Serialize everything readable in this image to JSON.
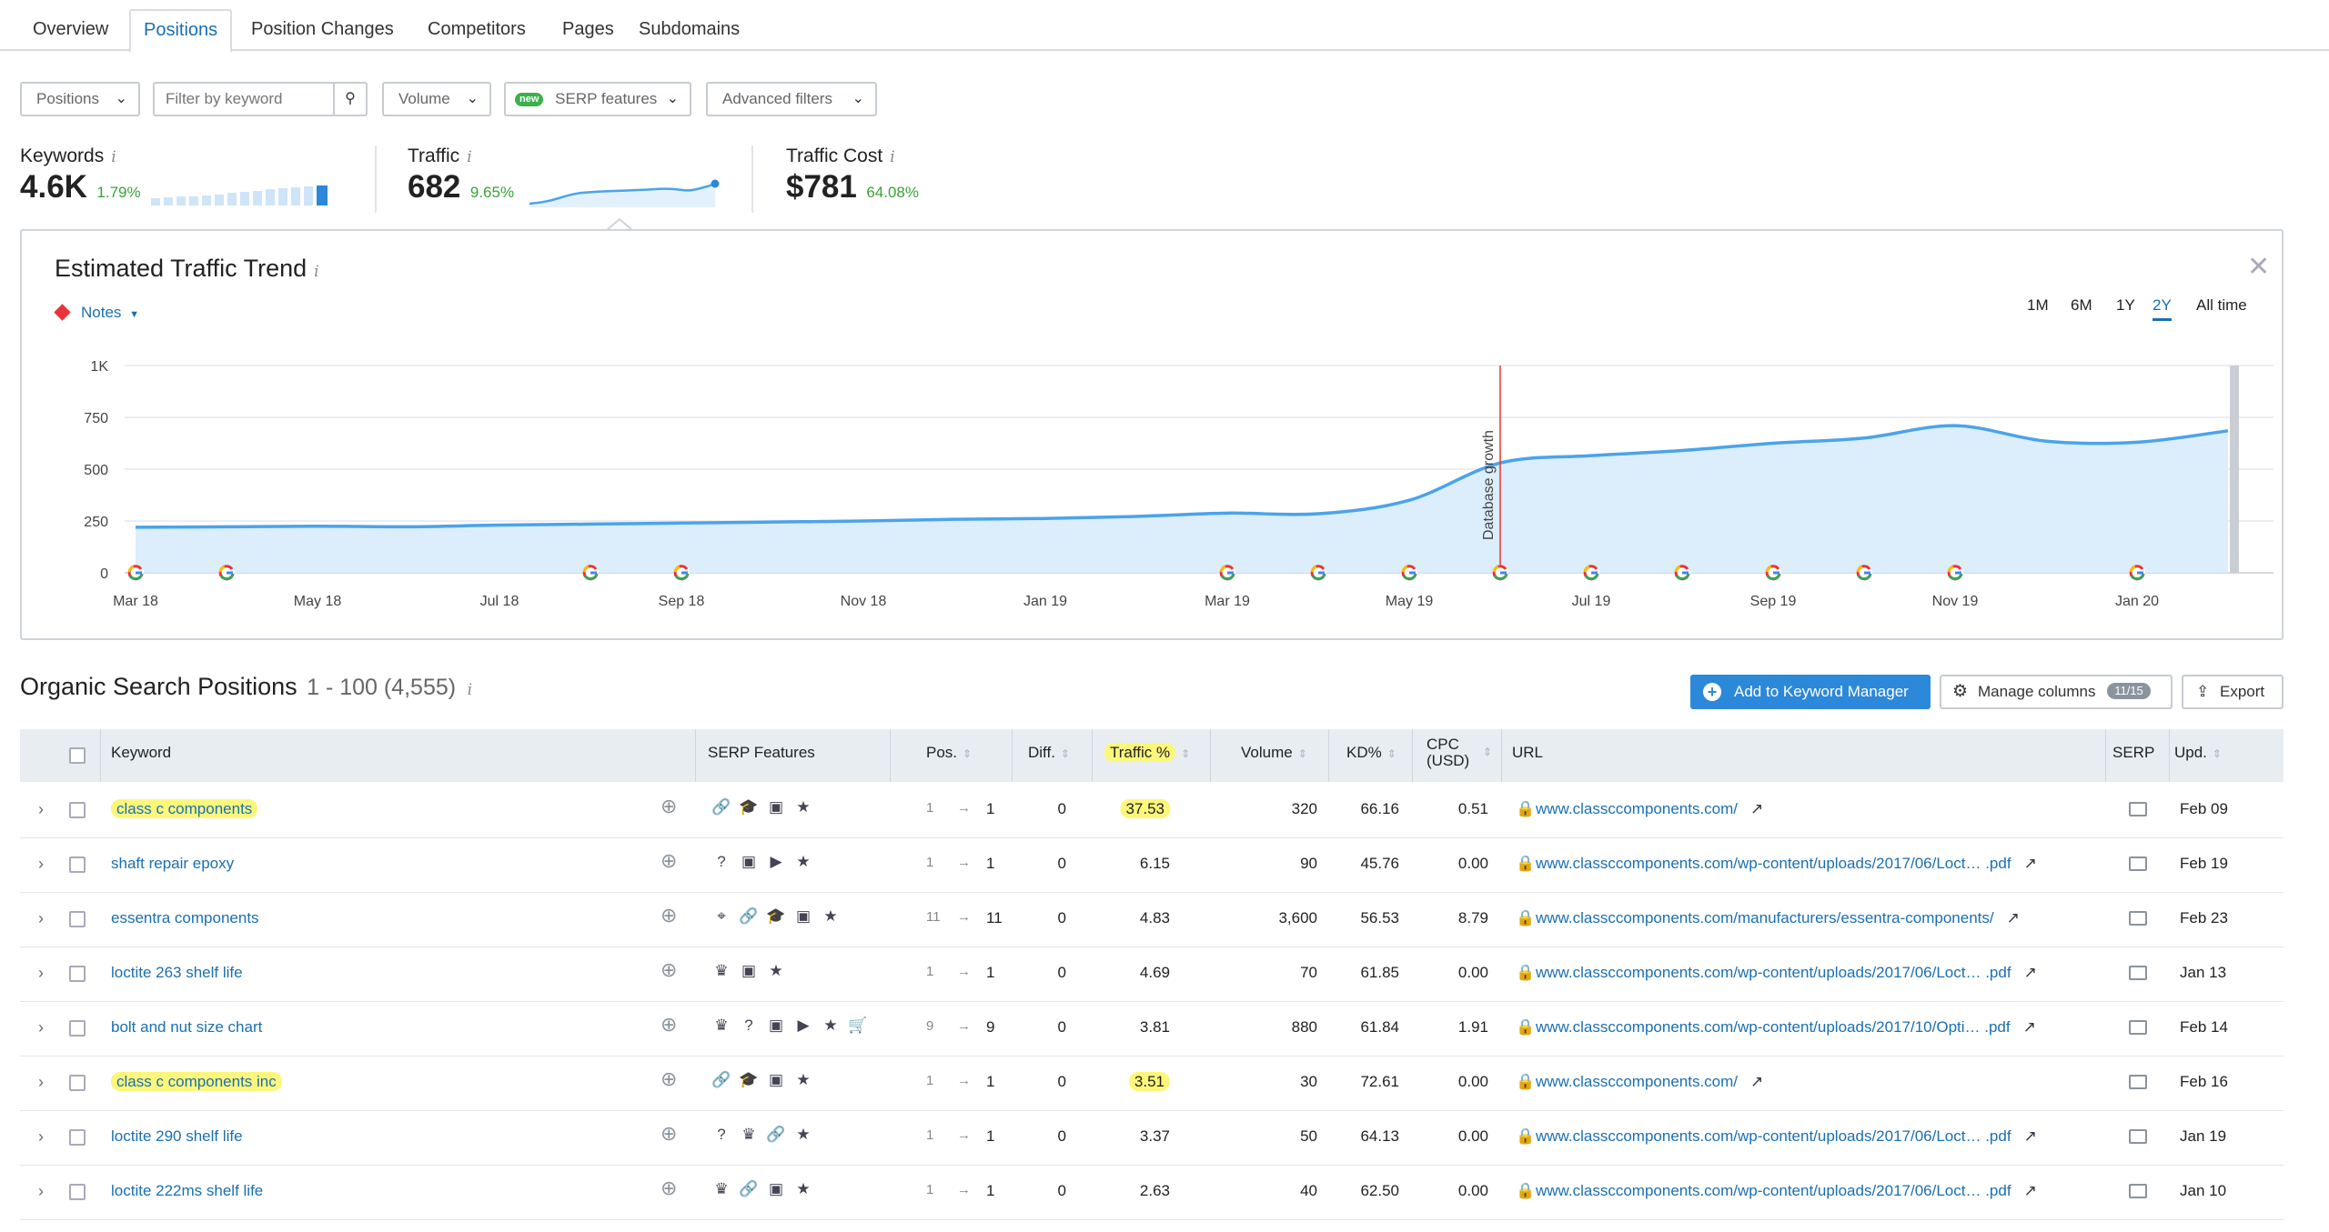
{
  "tabs": [
    "Overview",
    "Positions",
    "Position Changes",
    "Competitors",
    "Pages",
    "Subdomains"
  ],
  "filters": {
    "positions": "Positions",
    "keyword_placeholder": "Filter by keyword",
    "volume": "Volume",
    "serp_badge": "new",
    "serp": "SERP features",
    "advanced": "Advanced filters"
  },
  "metrics": {
    "keywords": {
      "label": "Keywords",
      "value": "4.6K",
      "pct": "1.79%"
    },
    "traffic": {
      "label": "Traffic",
      "value": "682",
      "pct": "9.65%"
    },
    "cost": {
      "label": "Traffic Cost",
      "value": "$781",
      "pct": "64.08%"
    }
  },
  "trend": {
    "title": "Estimated Traffic Trend",
    "notes": "Notes",
    "ranges": [
      "1M",
      "6M",
      "1Y",
      "2Y",
      "All time"
    ],
    "active_range": "2Y",
    "annotation": "Database growth"
  },
  "chart_data": {
    "type": "area",
    "x_labels": [
      "Mar 18",
      "May 18",
      "Jul 18",
      "Sep 18",
      "Nov 18",
      "Jan 19",
      "Mar 19",
      "May 19",
      "Jul 19",
      "Sep 19",
      "Nov 19",
      "Jan 20"
    ],
    "yticks": [
      "0",
      "250",
      "500",
      "750",
      "1K"
    ],
    "ylim": [
      0,
      1000
    ],
    "series": [
      {
        "x": [
          "Mar 18",
          "Apr 18",
          "May 18",
          "Jun 18",
          "Jul 18",
          "Aug 18",
          "Sep 18",
          "Oct 18",
          "Nov 18",
          "Dec 18",
          "Jan 19",
          "Feb 19",
          "Mar 19",
          "Apr 19",
          "May 19",
          "Jun 19",
          "Jul 19",
          "Aug 19",
          "Sep 19",
          "Oct 19",
          "Nov 19",
          "Dec 19",
          "Jan 20",
          "Feb 20"
        ],
        "y": [
          220,
          222,
          225,
          222,
          230,
          235,
          240,
          245,
          250,
          258,
          262,
          272,
          288,
          285,
          350,
          530,
          565,
          590,
          625,
          650,
          710,
          635,
          630,
          685
        ]
      }
    ],
    "google_markers": [
      "Mar 18",
      "Apr 18",
      "Aug 18",
      "Sep 18",
      "Mar 19",
      "Apr 19",
      "May 19",
      "Jun 19",
      "Jul 19",
      "Aug 19",
      "Sep 19",
      "Oct 19",
      "Nov 19",
      "Jan 20"
    ],
    "grid": true,
    "color": "#4aa3ec"
  },
  "positions": {
    "title": "Organic Search Positions",
    "range": "1 - 100 (4,555)",
    "add_btn": "Add to Keyword Manager",
    "manage_btn": "Manage columns",
    "manage_badge": "11/15",
    "export_btn": "Export"
  },
  "columns": [
    "Keyword",
    "SERP Features",
    "Pos.",
    "Diff.",
    "Traffic %",
    "Volume",
    "KD%",
    "CPC",
    "(USD)",
    "URL",
    "SERP",
    "Upd."
  ],
  "rows": [
    {
      "keyword": "class c components",
      "hl": true,
      "icons": [
        "link-icon",
        "graduation-cap-icon",
        "image-icon",
        "star-icon"
      ],
      "pos_from": "1",
      "pos_to": "1",
      "diff": "0",
      "traffic": "37.53",
      "volume": "320",
      "kd": "66.16",
      "cpc": "0.51",
      "url": "www.classccomponents.com/",
      "upd": "Feb 09"
    },
    {
      "keyword": "shaft repair epoxy",
      "hl": false,
      "icons": [
        "question-icon",
        "image-icon",
        "video-icon",
        "star-icon"
      ],
      "pos_from": "1",
      "pos_to": "1",
      "diff": "0",
      "traffic": "6.15",
      "volume": "90",
      "kd": "45.76",
      "cpc": "0.00",
      "url": "www.classccomponents.com/wp-content/uploads/2017/06/Loct… .pdf",
      "upd": "Feb 19"
    },
    {
      "keyword": "essentra components",
      "hl": false,
      "icons": [
        "pin-icon",
        "link-icon",
        "graduation-cap-icon",
        "image-icon",
        "star-icon"
      ],
      "pos_from": "11",
      "pos_to": "11",
      "diff": "0",
      "traffic": "4.83",
      "volume": "3,600",
      "kd": "56.53",
      "cpc": "8.79",
      "url": "www.classccomponents.com/manufacturers/essentra-components/",
      "upd": "Feb 23"
    },
    {
      "keyword": "loctite 263 shelf life",
      "hl": false,
      "icons": [
        "crown-icon",
        "image-icon",
        "star-icon"
      ],
      "pos_from": "1",
      "pos_to": "1",
      "diff": "0",
      "traffic": "4.69",
      "volume": "70",
      "kd": "61.85",
      "cpc": "0.00",
      "url": "www.classccomponents.com/wp-content/uploads/2017/06/Loct… .pdf",
      "upd": "Jan 13"
    },
    {
      "keyword": "bolt and nut size chart",
      "hl": false,
      "icons": [
        "crown-icon",
        "question-icon",
        "image-icon",
        "video-icon",
        "star-icon",
        "cart-icon"
      ],
      "pos_from": "9",
      "pos_to": "9",
      "diff": "0",
      "traffic": "3.81",
      "volume": "880",
      "kd": "61.84",
      "cpc": "1.91",
      "url": "www.classccomponents.com/wp-content/uploads/2017/10/Opti… .pdf",
      "upd": "Feb 14"
    },
    {
      "keyword": "class c components inc",
      "hl": true,
      "icons": [
        "link-icon",
        "graduation-cap-icon",
        "image-icon",
        "star-icon"
      ],
      "pos_from": "1",
      "pos_to": "1",
      "diff": "0",
      "traffic": "3.51",
      "volume": "30",
      "kd": "72.61",
      "cpc": "0.00",
      "url": "www.classccomponents.com/",
      "upd": "Feb 16"
    },
    {
      "keyword": "loctite 290 shelf life",
      "hl": false,
      "icons": [
        "question-icon",
        "crown-icon",
        "link-icon",
        "star-icon"
      ],
      "pos_from": "1",
      "pos_to": "1",
      "diff": "0",
      "traffic": "3.37",
      "volume": "50",
      "kd": "64.13",
      "cpc": "0.00",
      "url": "www.classccomponents.com/wp-content/uploads/2017/06/Loct… .pdf",
      "upd": "Jan 19"
    },
    {
      "keyword": "loctite 222ms shelf life",
      "hl": false,
      "icons": [
        "crown-icon",
        "link-icon",
        "image-icon",
        "star-icon"
      ],
      "pos_from": "1",
      "pos_to": "1",
      "diff": "0",
      "traffic": "2.63",
      "volume": "40",
      "kd": "62.50",
      "cpc": "0.00",
      "url": "www.classccomponents.com/wp-content/uploads/2017/06/Loct… .pdf",
      "upd": "Jan 10"
    }
  ]
}
